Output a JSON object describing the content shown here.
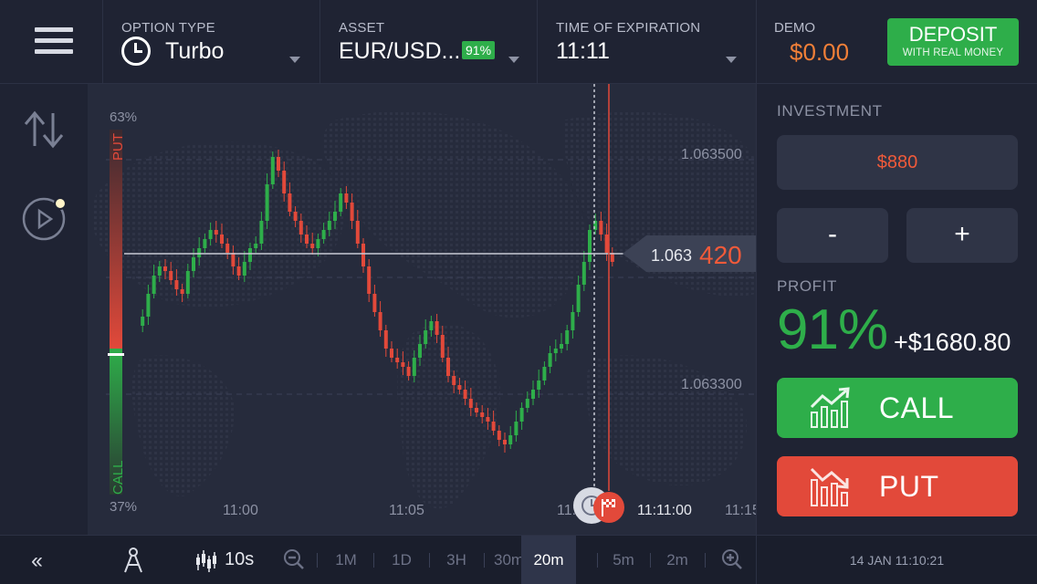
{
  "topbar": {
    "option_type": {
      "label": "OPTION TYPE",
      "value": "Turbo"
    },
    "asset": {
      "label": "ASSET",
      "value": "EUR/USD...",
      "badge": "91%"
    },
    "expiration": {
      "label": "TIME OF EXPIRATION",
      "value": "11:11"
    },
    "account": {
      "label": "DEMO",
      "balance": "$0.00"
    },
    "deposit": {
      "title": "DEPOSIT",
      "subtitle": "WITH REAL MONEY"
    }
  },
  "sentiment": {
    "put_label": "PUT",
    "put_pct": "63%",
    "call_label": "CALL",
    "call_pct": "37%",
    "call_fraction": 0.37
  },
  "chart": {
    "price_ticks": [
      "1.063500",
      "1.063300"
    ],
    "current_price": {
      "main": "1.063",
      "highlight": "420"
    },
    "time_labels": [
      "11:00",
      "11:05",
      "11:",
      "11:11:00",
      "11:15"
    ],
    "colors": {
      "up": "#2eae4a",
      "down": "#e2493a"
    }
  },
  "chart_data": {
    "type": "candlestick",
    "yticks": [
      1.0635,
      1.0633
    ],
    "xticks": [
      "11:00",
      "11:05",
      "11:11:00",
      "11:15"
    ],
    "current_price": 1.06342,
    "expiration_time": "11:11:00",
    "candles_approx": "estimated price path from ~1.06325 to ~1.06358, ending near 1.06342"
  },
  "bottombar": {
    "interval": "10s",
    "timeframes": [
      "1M",
      "1D",
      "3H",
      "30m",
      "20m",
      "5m",
      "2m"
    ],
    "active_timeframe": "20m",
    "datetime": "14 JAN 11:10:21"
  },
  "rightpanel": {
    "investment_label": "INVESTMENT",
    "investment_value": "$880",
    "minus": "-",
    "plus": "+",
    "profit_label": "PROFIT",
    "profit_pct": "91%",
    "profit_amount": "+$1680.80",
    "call_label": "CALL",
    "put_label": "PUT"
  }
}
